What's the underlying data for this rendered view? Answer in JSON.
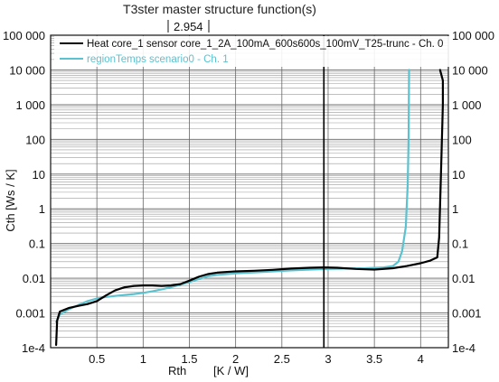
{
  "chart_data": {
    "type": "line",
    "title": "T3ster master structure function(s)",
    "xlabel": "Rth",
    "xunit": "[K / W]",
    "ylabel": "Cth [Ws / K]",
    "xlim": [
      0,
      4.3
    ],
    "ylim": [
      0.0001,
      100000
    ],
    "yscale": "log",
    "x_ticks": [
      0.5,
      1,
      1.5,
      2,
      2.5,
      3,
      3.5,
      4
    ],
    "x_tick_labels": [
      "0.5",
      "1",
      "1.5",
      "2",
      "2.5",
      "3",
      "3.5",
      "4"
    ],
    "y_ticks": [
      0.0001,
      0.001,
      0.01,
      0.1,
      1,
      10,
      100,
      1000,
      10000,
      100000
    ],
    "y_tick_labels": [
      "1e-4",
      "0.001",
      "0.01",
      "0.1",
      "1",
      "10",
      "100",
      "1 000",
      "10 000",
      "100 000"
    ],
    "grid": true,
    "legend_position": "top",
    "cursor": {
      "x": 2.954,
      "label": "2.954"
    },
    "series": [
      {
        "name": "Heat core_1 sensor core_1_2A_100mA_600s600s_100mV_T25-trunc - Ch. 0",
        "color": "#000000",
        "points": [
          [
            0.06,
            0.00012
          ],
          [
            0.07,
            0.0006
          ],
          [
            0.1,
            0.0011
          ],
          [
            0.2,
            0.0014
          ],
          [
            0.3,
            0.0016
          ],
          [
            0.4,
            0.0018
          ],
          [
            0.5,
            0.0022
          ],
          [
            0.6,
            0.0032
          ],
          [
            0.7,
            0.0045
          ],
          [
            0.8,
            0.0055
          ],
          [
            0.9,
            0.006
          ],
          [
            1.0,
            0.0062
          ],
          [
            1.1,
            0.0062
          ],
          [
            1.2,
            0.006
          ],
          [
            1.3,
            0.0062
          ],
          [
            1.4,
            0.0068
          ],
          [
            1.5,
            0.0085
          ],
          [
            1.6,
            0.011
          ],
          [
            1.7,
            0.0132
          ],
          [
            1.8,
            0.0145
          ],
          [
            2.0,
            0.0158
          ],
          [
            2.2,
            0.0165
          ],
          [
            2.4,
            0.0175
          ],
          [
            2.6,
            0.019
          ],
          [
            2.8,
            0.02
          ],
          [
            2.954,
            0.0205
          ],
          [
            3.1,
            0.02
          ],
          [
            3.3,
            0.0185
          ],
          [
            3.5,
            0.0178
          ],
          [
            3.7,
            0.0195
          ],
          [
            3.85,
            0.0225
          ],
          [
            4.0,
            0.027
          ],
          [
            4.1,
            0.032
          ],
          [
            4.18,
            0.04
          ],
          [
            4.2,
            0.15
          ],
          [
            4.22,
            10
          ],
          [
            4.24,
            1000
          ],
          [
            4.24,
            5000
          ],
          [
            4.22,
            8000
          ],
          [
            4.21,
            10000
          ]
        ]
      },
      {
        "name": "regionTemps scenario0 - Ch. 1",
        "color": "#5bc2cf",
        "points": [
          [
            0.06,
            0.00055
          ],
          [
            0.1,
            0.0009
          ],
          [
            0.2,
            0.0013
          ],
          [
            0.3,
            0.0017
          ],
          [
            0.4,
            0.0022
          ],
          [
            0.5,
            0.0026
          ],
          [
            0.6,
            0.0029
          ],
          [
            0.7,
            0.0031
          ],
          [
            0.8,
            0.0033
          ],
          [
            0.9,
            0.0035
          ],
          [
            1.0,
            0.0038
          ],
          [
            1.1,
            0.0042
          ],
          [
            1.2,
            0.0048
          ],
          [
            1.3,
            0.0055
          ],
          [
            1.4,
            0.0065
          ],
          [
            1.5,
            0.0078
          ],
          [
            1.6,
            0.0095
          ],
          [
            1.7,
            0.0115
          ],
          [
            1.8,
            0.0125
          ],
          [
            2.0,
            0.0138
          ],
          [
            2.2,
            0.0148
          ],
          [
            2.4,
            0.0158
          ],
          [
            2.6,
            0.0168
          ],
          [
            2.8,
            0.0178
          ],
          [
            3.0,
            0.0185
          ],
          [
            3.2,
            0.019
          ],
          [
            3.4,
            0.0195
          ],
          [
            3.6,
            0.0205
          ],
          [
            3.7,
            0.0225
          ],
          [
            3.76,
            0.03
          ],
          [
            3.8,
            0.06
          ],
          [
            3.84,
            0.3
          ],
          [
            3.86,
            5
          ],
          [
            3.87,
            100
          ],
          [
            3.875,
            10000
          ]
        ]
      }
    ]
  }
}
